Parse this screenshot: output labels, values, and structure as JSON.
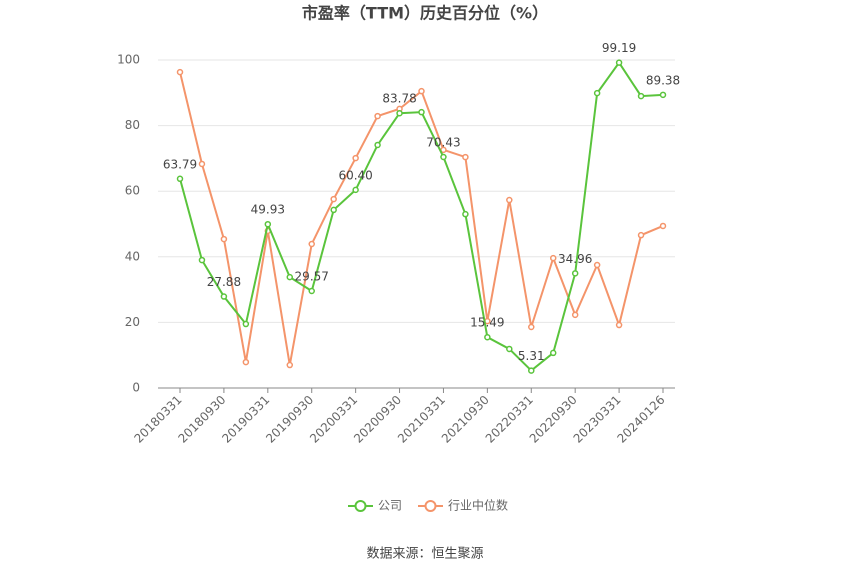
{
  "chart_data": {
    "type": "line",
    "title": "市盈率（TTM）历史百分位（%）",
    "categories": [
      "20180331",
      null,
      "20180930",
      null,
      "20190331",
      null,
      "20190930",
      null,
      "20200331",
      null,
      "20200930",
      null,
      "20210331",
      null,
      "20210930",
      null,
      "20220331",
      null,
      "20220930",
      null,
      "20230331",
      null,
      "20240126"
    ],
    "series": [
      {
        "name": "公司",
        "color": "#5ac43c",
        "values": [
          63.79,
          39.0,
          27.88,
          19.5,
          49.93,
          33.8,
          29.57,
          54.3,
          60.4,
          74.1,
          83.78,
          84.1,
          70.43,
          53.0,
          15.49,
          11.9,
          5.31,
          10.7,
          34.96,
          89.9,
          99.19,
          89.0,
          89.38
        ],
        "value_labels": [
          "63.79",
          null,
          "27.88",
          null,
          "49.93",
          null,
          "29.57",
          null,
          "60.40",
          null,
          "83.78",
          null,
          "70.43",
          null,
          "15.49",
          null,
          "5.31",
          null,
          "34.96",
          null,
          "99.19",
          null,
          "89.38"
        ]
      },
      {
        "name": "行业中位数",
        "color": "#f4946a",
        "values": [
          96.3,
          68.3,
          45.4,
          7.9,
          47.9,
          7.0,
          43.9,
          57.6,
          70.1,
          82.9,
          85.1,
          90.5,
          72.6,
          70.4,
          20.4,
          57.3,
          18.6,
          39.6,
          22.3,
          37.5,
          19.2,
          46.6,
          49.4
        ]
      }
    ],
    "ylim": [
      0,
      100
    ],
    "yticks": [
      0,
      20,
      40,
      60,
      80,
      100
    ],
    "grid": true,
    "legend": "bottom",
    "source": "数据来源：恒生聚源"
  }
}
